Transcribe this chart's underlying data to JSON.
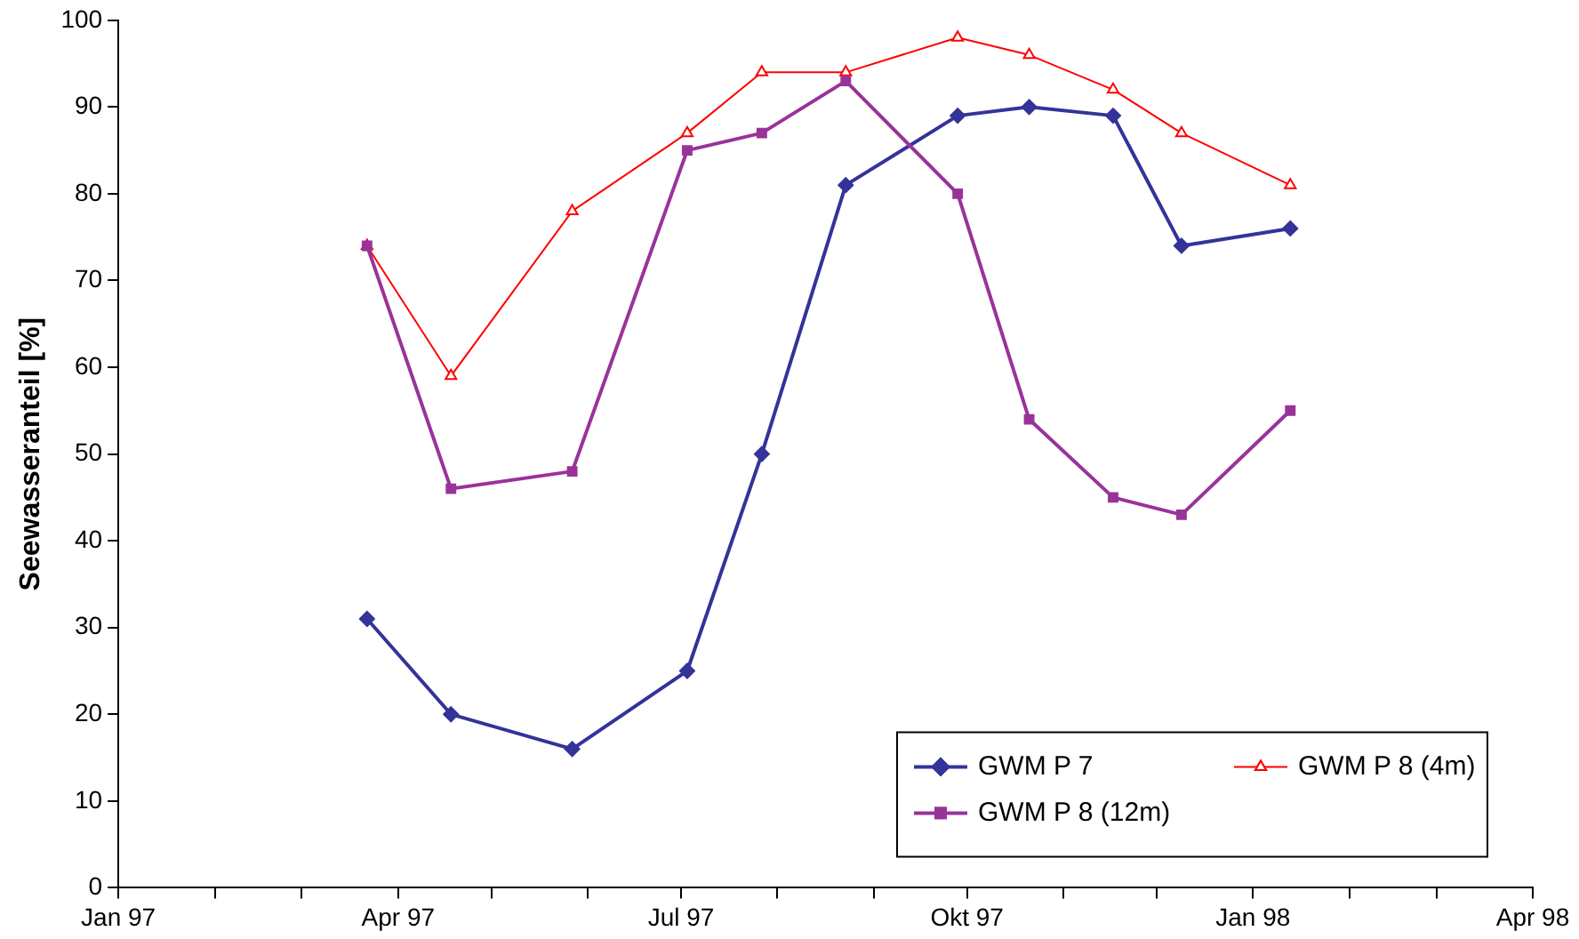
{
  "chart_data": {
    "type": "line",
    "ylabel": "Seewasseranteil [%]",
    "x": [
      "1997-03-22",
      "1997-04-18",
      "1997-05-27",
      "1997-07-03",
      "1997-07-27",
      "1997-08-23",
      "1997-09-28",
      "1997-10-21",
      "1997-11-17",
      "1997-12-09",
      "1998-01-13"
    ],
    "series": [
      {
        "name": "GWM P 7",
        "color": "#333399",
        "marker": "diamond",
        "values": [
          31,
          20,
          16,
          25,
          50,
          81,
          89,
          90,
          89,
          74,
          76
        ]
      },
      {
        "name": "GWM P 8 (4m)",
        "color": "#ff0000",
        "marker": "triangle",
        "values": [
          74,
          59,
          78,
          87,
          94,
          94,
          98,
          96,
          92,
          87,
          81
        ]
      },
      {
        "name": "GWM P 8 (12m)",
        "color": "#993399",
        "marker": "square",
        "values": [
          74,
          46,
          48,
          85,
          87,
          93,
          80,
          54,
          45,
          43,
          55
        ]
      }
    ],
    "xlim": [
      "1997-01",
      "1998-04"
    ],
    "xticks": [
      {
        "value": "1997-01",
        "label": "Jan 97"
      },
      {
        "value": "1997-02",
        "label": null
      },
      {
        "value": "1997-03",
        "label": null
      },
      {
        "value": "1997-04",
        "label": "Apr 97"
      },
      {
        "value": "1997-05",
        "label": null
      },
      {
        "value": "1997-06",
        "label": null
      },
      {
        "value": "1997-07",
        "label": "Jul 97"
      },
      {
        "value": "1997-08",
        "label": null
      },
      {
        "value": "1997-09",
        "label": null
      },
      {
        "value": "1997-10",
        "label": "Okt 97"
      },
      {
        "value": "1997-11",
        "label": null
      },
      {
        "value": "1997-12",
        "label": null
      },
      {
        "value": "1998-01",
        "label": "Jan 98"
      },
      {
        "value": "1998-02",
        "label": null
      },
      {
        "value": "1998-03",
        "label": null
      },
      {
        "value": "1998-04",
        "label": "Apr 98"
      }
    ],
    "ylim": [
      0,
      100
    ],
    "yticks": [
      0,
      10,
      20,
      30,
      40,
      50,
      60,
      70,
      80,
      90,
      100
    ],
    "grid": false,
    "legend": "bottom right"
  }
}
